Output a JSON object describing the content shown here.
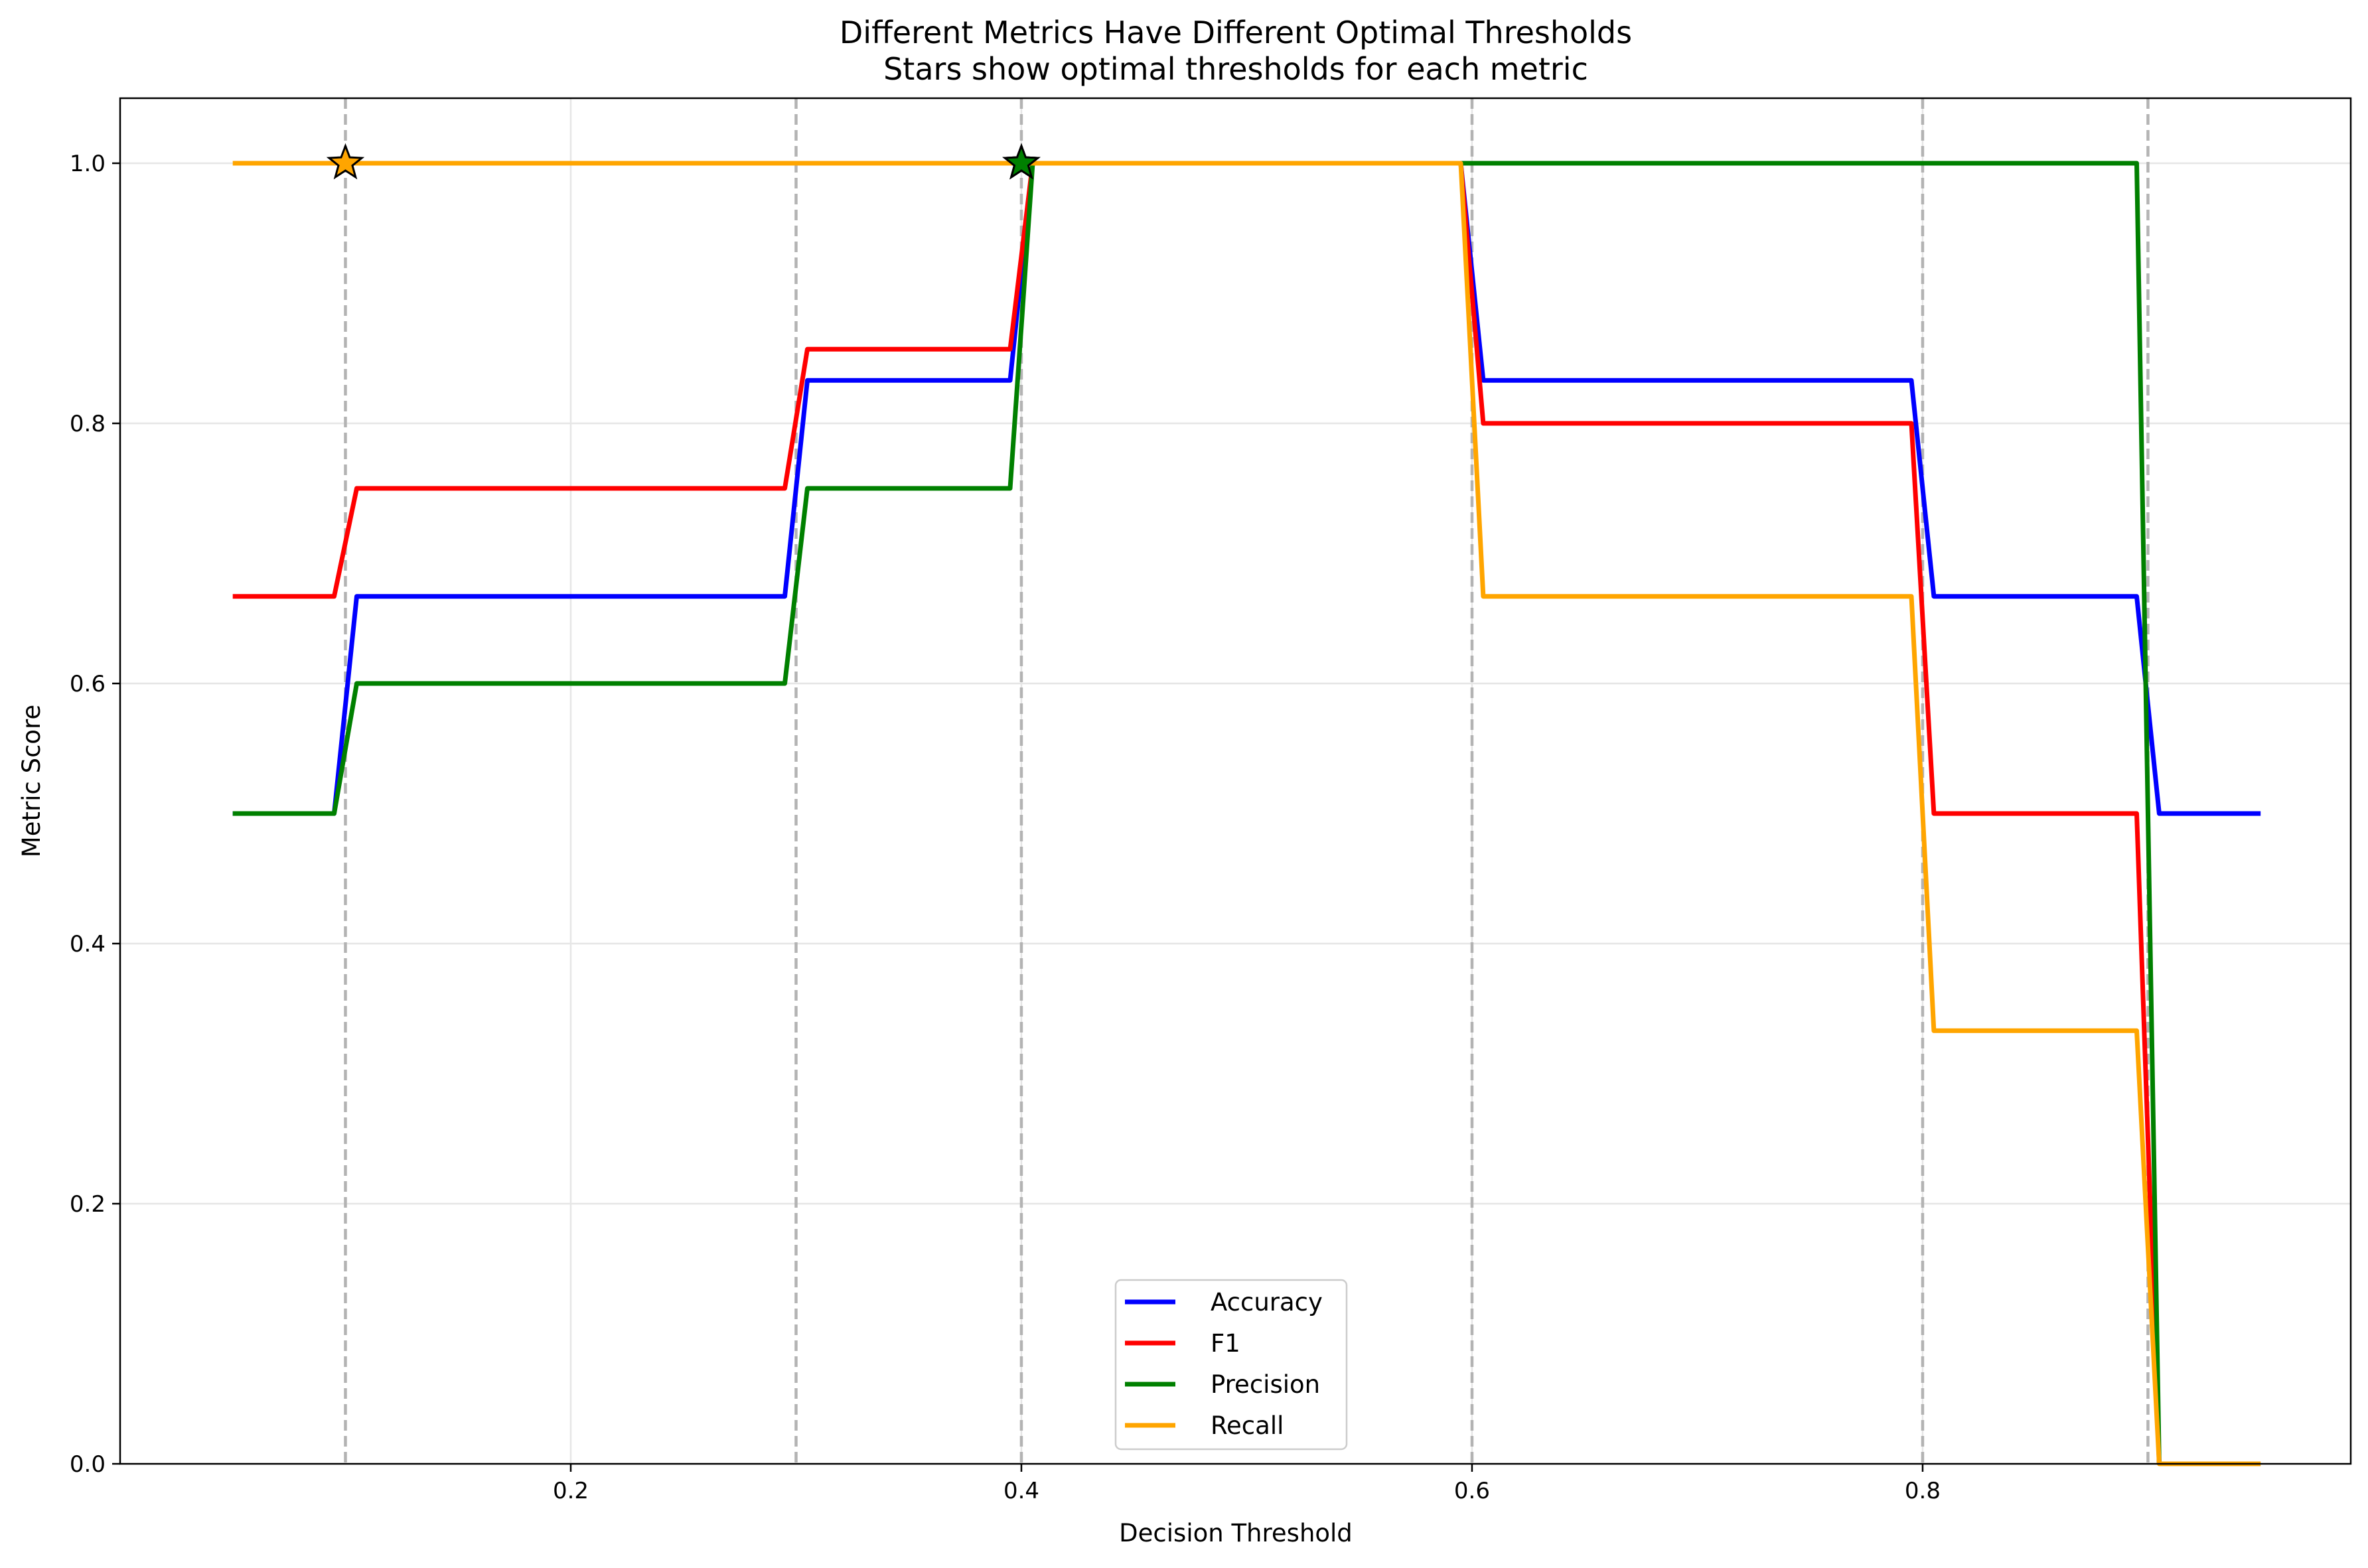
{
  "chart_data": {
    "type": "line",
    "title": "Different Metrics Have Different Optimal Thresholds",
    "subtitle": "Stars show optimal thresholds for each metric",
    "xlabel": "Decision Threshold",
    "ylabel": "Metric Score",
    "xlim": [
      0.0,
      0.99
    ],
    "ylim": [
      0.0,
      1.05
    ],
    "xticks": [
      0.2,
      0.4,
      0.6,
      0.8
    ],
    "xtick_labels": [
      "0.2",
      "0.4",
      "0.6",
      "0.8"
    ],
    "yticks": [
      0.0,
      0.2,
      0.4,
      0.6,
      0.8,
      1.0
    ],
    "ytick_labels": [
      "0.0",
      "0.2",
      "0.4",
      "0.6",
      "0.8",
      "1.0"
    ],
    "grid": true,
    "legend_position": "bottom-center",
    "reference_lines": [
      0.1,
      0.3,
      0.4,
      0.6,
      0.8,
      0.9
    ],
    "series": [
      {
        "name": "Accuracy",
        "color": "#0000ff",
        "x": [
          0.05,
          0.095,
          0.105,
          0.295,
          0.305,
          0.395,
          0.405,
          0.595,
          0.605,
          0.795,
          0.805,
          0.895,
          0.905,
          0.95
        ],
        "y": [
          0.5,
          0.5,
          0.667,
          0.667,
          0.833,
          0.833,
          1.0,
          1.0,
          0.833,
          0.833,
          0.667,
          0.667,
          0.5,
          0.5
        ]
      },
      {
        "name": "F1",
        "color": "#ff0000",
        "x": [
          0.05,
          0.095,
          0.105,
          0.295,
          0.305,
          0.395,
          0.405,
          0.595,
          0.605,
          0.795,
          0.805,
          0.895,
          0.905
        ],
        "y": [
          0.667,
          0.667,
          0.75,
          0.75,
          0.857,
          0.857,
          1.0,
          1.0,
          0.8,
          0.8,
          0.5,
          0.5,
          0.0
        ]
      },
      {
        "name": "Precision",
        "color": "#008000",
        "x": [
          0.05,
          0.095,
          0.105,
          0.295,
          0.305,
          0.395,
          0.405,
          0.895,
          0.905
        ],
        "y": [
          0.5,
          0.5,
          0.6,
          0.6,
          0.75,
          0.75,
          1.0,
          1.0,
          0.0
        ]
      },
      {
        "name": "Recall",
        "color": "#ffa500",
        "x": [
          0.05,
          0.595,
          0.605,
          0.795,
          0.805,
          0.895,
          0.905,
          0.95
        ],
        "y": [
          1.0,
          1.0,
          0.667,
          0.667,
          0.333,
          0.333,
          0.0,
          0.0
        ]
      }
    ],
    "optimal_points": [
      {
        "metric": "Recall",
        "x": 0.1,
        "y": 1.0,
        "color": "#ffa500"
      },
      {
        "metric": "Accuracy",
        "x": 0.4,
        "y": 1.0,
        "color": "#0000ff"
      },
      {
        "metric": "F1",
        "x": 0.4,
        "y": 1.0,
        "color": "#ff0000"
      },
      {
        "metric": "Precision",
        "x": 0.4,
        "y": 1.0,
        "color": "#008000"
      }
    ]
  }
}
